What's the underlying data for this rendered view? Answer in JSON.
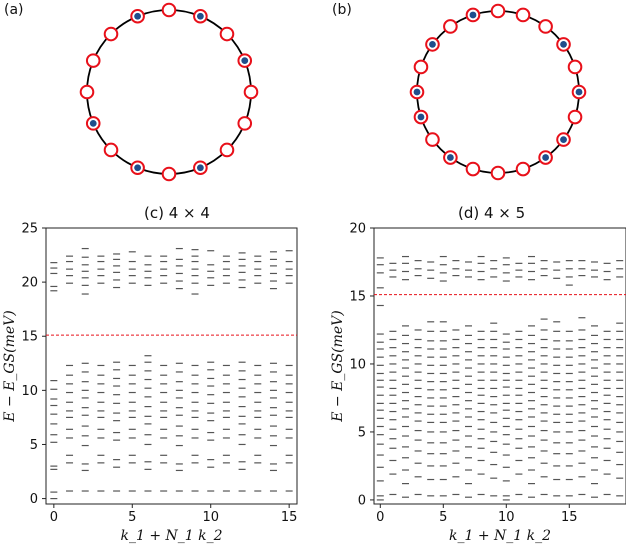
{
  "panels": [
    {
      "label": "(a)",
      "sites": 16,
      "filled": [
        false,
        true,
        false,
        true,
        false,
        false,
        false,
        true,
        false,
        true,
        false,
        true,
        false,
        false,
        false,
        true
      ]
    },
    {
      "label": "(b)",
      "sites": 20,
      "filled": [
        false,
        false,
        true,
        false,
        true,
        true,
        false,
        true,
        false,
        true,
        false,
        false,
        false,
        true,
        false,
        true,
        false,
        true,
        true,
        false
      ]
    }
  ],
  "colors": {
    "ring": "#000000",
    "site_edge": "#e8101a",
    "site_fill": "#ffffff",
    "occupied": "#1f4e8c",
    "level": "#555555",
    "cut": "#e8101a"
  },
  "chart_data": [
    {
      "type": "scatter",
      "title": "(c)  4 × 4",
      "xlabel": "k_1 + N_1 k_2",
      "ylabel": "E − E_GS(meV)",
      "xlim": [
        -0.5,
        15.5
      ],
      "ylim": [
        -0.5,
        25
      ],
      "xticks": [
        0,
        5,
        10,
        15
      ],
      "yticks": [
        0,
        5,
        10,
        15,
        20,
        25
      ],
      "cut_line": 15.1,
      "levels": [
        {
          "x": 0,
          "y": [
            0.0,
            0.6,
            2.7,
            3.0,
            5.2,
            5.9,
            6.9,
            7.8,
            8.6,
            9.2,
            10.1,
            10.9,
            19.2,
            19.6,
            20.8,
            21.3,
            21.8
          ]
        },
        {
          "x": 1,
          "y": [
            0.7,
            3.3,
            4.0,
            5.6,
            6.4,
            7.5,
            8.1,
            8.9,
            9.8,
            10.6,
            11.4,
            12.3,
            19.9,
            20.6,
            21.2,
            21.9,
            22.4
          ]
        },
        {
          "x": 2,
          "y": [
            0.7,
            2.6,
            3.2,
            4.9,
            5.8,
            6.7,
            7.7,
            8.4,
            9.3,
            10.0,
            10.8,
            11.7,
            12.5,
            18.9,
            19.7,
            20.4,
            21.0,
            21.6,
            22.3,
            23.1
          ]
        },
        {
          "x": 3,
          "y": [
            0.7,
            3.3,
            4.0,
            5.6,
            6.4,
            7.5,
            8.1,
            8.9,
            9.8,
            10.6,
            11.4,
            12.3,
            19.9,
            20.6,
            21.2,
            21.9,
            22.4
          ]
        },
        {
          "x": 4,
          "y": [
            0.7,
            2.9,
            3.6,
            5.4,
            6.1,
            7.2,
            7.9,
            8.8,
            9.6,
            10.4,
            11.1,
            11.9,
            12.6,
            19.5,
            20.2,
            20.9,
            21.5,
            22.1,
            22.6
          ]
        },
        {
          "x": 5,
          "y": [
            0.7,
            3.3,
            4.0,
            5.6,
            6.4,
            7.5,
            8.1,
            8.9,
            9.8,
            10.6,
            11.4,
            12.3,
            19.9,
            20.6,
            21.2,
            21.9,
            22.8
          ]
        },
        {
          "x": 6,
          "y": [
            0.7,
            2.7,
            3.4,
            5.0,
            5.9,
            6.9,
            7.6,
            8.5,
            9.4,
            10.2,
            11.0,
            11.8,
            12.6,
            13.2,
            19.7,
            20.4,
            21.0,
            21.6,
            22.4
          ]
        },
        {
          "x": 7,
          "y": [
            0.7,
            3.3,
            4.0,
            5.6,
            6.4,
            7.5,
            8.1,
            8.9,
            9.8,
            10.6,
            11.4,
            12.3,
            19.9,
            20.6,
            21.2,
            21.9,
            22.4
          ]
        },
        {
          "x": 8,
          "y": [
            0.7,
            2.6,
            3.2,
            4.9,
            5.8,
            6.7,
            7.7,
            8.4,
            9.3,
            10.0,
            10.8,
            11.7,
            12.5,
            19.4,
            20.1,
            20.8,
            21.5,
            22.1,
            23.1
          ]
        },
        {
          "x": 9,
          "y": [
            0.7,
            3.3,
            4.0,
            5.6,
            6.4,
            7.5,
            8.1,
            8.9,
            9.8,
            10.6,
            11.4,
            12.3,
            18.9,
            19.9,
            20.6,
            21.2,
            21.9,
            22.4,
            23.0
          ]
        },
        {
          "x": 10,
          "y": [
            0.7,
            2.9,
            3.6,
            5.4,
            6.1,
            7.2,
            7.9,
            8.8,
            9.6,
            10.4,
            11.1,
            11.9,
            12.6,
            19.7,
            20.4,
            21.0,
            21.6,
            22.9
          ]
        },
        {
          "x": 11,
          "y": [
            0.7,
            3.3,
            4.0,
            5.6,
            6.4,
            7.5,
            8.1,
            8.9,
            9.8,
            10.6,
            11.4,
            12.3,
            19.9,
            20.6,
            21.2,
            21.9,
            22.4
          ]
        },
        {
          "x": 12,
          "y": [
            0.7,
            2.7,
            3.4,
            5.0,
            5.9,
            6.9,
            7.6,
            8.5,
            9.4,
            10.2,
            11.0,
            11.8,
            12.6,
            19.5,
            20.2,
            20.9,
            21.5,
            22.1,
            22.7
          ]
        },
        {
          "x": 13,
          "y": [
            0.7,
            3.3,
            4.0,
            5.6,
            6.4,
            7.5,
            8.1,
            8.9,
            9.8,
            10.6,
            11.4,
            12.3,
            19.9,
            20.6,
            21.2,
            21.9,
            22.4
          ]
        },
        {
          "x": 14,
          "y": [
            0.7,
            2.6,
            3.2,
            4.9,
            5.8,
            6.7,
            7.7,
            8.4,
            9.3,
            10.0,
            10.8,
            11.7,
            12.5,
            19.4,
            20.1,
            20.8,
            21.5,
            22.1,
            22.8
          ]
        },
        {
          "x": 15,
          "y": [
            0.7,
            3.3,
            4.0,
            5.6,
            6.4,
            7.5,
            8.1,
            8.9,
            9.8,
            10.6,
            11.4,
            12.3,
            19.9,
            20.6,
            21.2,
            21.9,
            22.9
          ]
        }
      ]
    },
    {
      "type": "scatter",
      "title": "(d)  4 × 5",
      "xlabel": "k_1 + N_1 k_2",
      "ylabel": "E − E_GS(meV)",
      "xlim": [
        -0.5,
        19.5
      ],
      "ylim": [
        -0.3,
        20
      ],
      "xticks": [
        0,
        5,
        10,
        15
      ],
      "yticks": [
        0,
        5,
        10,
        15,
        20
      ],
      "cut_line": 15.1,
      "levels": [
        {
          "x": 0,
          "y": [
            0.0,
            0.3,
            1.4,
            2.4,
            3.3,
            4.1,
            4.8,
            5.4,
            6.0,
            6.6,
            7.1,
            7.7,
            8.3,
            8.8,
            9.3,
            9.9,
            10.5,
            11.1,
            11.6,
            12.2,
            14.3,
            15.6,
            16.7,
            17.3,
            17.8
          ]
        },
        {
          "x": 1,
          "y": [
            0.4,
            1.9,
            2.9,
            3.8,
            4.5,
            5.2,
            5.9,
            6.5,
            7.1,
            7.7,
            8.2,
            8.8,
            9.4,
            10.0,
            10.6,
            11.2,
            11.8,
            12.4,
            16.4,
            16.9,
            17.4
          ]
        },
        {
          "x": 2,
          "y": [
            0.2,
            1.2,
            2.2,
            3.1,
            3.9,
            4.7,
            5.4,
            6.1,
            6.7,
            7.3,
            7.9,
            8.5,
            9.1,
            9.7,
            10.3,
            10.9,
            11.5,
            12.1,
            12.8,
            16.2,
            16.8,
            17.4,
            17.9
          ]
        },
        {
          "x": 3,
          "y": [
            0.4,
            1.7,
            2.7,
            3.6,
            4.4,
            5.1,
            5.8,
            6.4,
            7.0,
            7.6,
            8.2,
            8.8,
            9.4,
            10.0,
            10.6,
            11.2,
            11.8,
            12.5,
            16.5,
            17.0,
            17.6
          ]
        },
        {
          "x": 4,
          "y": [
            0.3,
            1.5,
            2.5,
            3.4,
            4.2,
            5.0,
            5.7,
            6.3,
            6.9,
            7.5,
            8.1,
            8.7,
            9.3,
            9.9,
            10.5,
            11.1,
            11.7,
            12.4,
            13.1,
            16.3,
            16.9,
            17.5
          ]
        },
        {
          "x": 5,
          "y": [
            0.3,
            1.5,
            2.5,
            3.4,
            4.2,
            5.0,
            5.7,
            6.3,
            6.9,
            7.5,
            8.1,
            8.7,
            9.3,
            9.9,
            10.5,
            11.1,
            11.7,
            12.4,
            13.1,
            16.1,
            16.7,
            17.3,
            17.9
          ]
        },
        {
          "x": 6,
          "y": [
            0.4,
            1.7,
            2.7,
            3.6,
            4.4,
            5.1,
            5.8,
            6.4,
            7.0,
            7.6,
            8.2,
            8.8,
            9.4,
            10.0,
            10.6,
            11.2,
            11.8,
            12.5,
            16.5,
            17.0,
            17.6
          ]
        },
        {
          "x": 7,
          "y": [
            0.2,
            1.2,
            2.2,
            3.1,
            3.9,
            4.7,
            5.4,
            6.1,
            6.7,
            7.3,
            7.9,
            8.5,
            9.1,
            9.7,
            10.3,
            10.9,
            11.5,
            12.1,
            12.8,
            16.4,
            16.9,
            17.5
          ]
        },
        {
          "x": 8,
          "y": [
            0.4,
            1.9,
            2.9,
            3.8,
            4.5,
            5.2,
            5.9,
            6.5,
            7.1,
            7.7,
            8.2,
            8.8,
            9.4,
            10.0,
            10.6,
            11.2,
            11.8,
            12.4,
            16.2,
            16.8,
            17.4,
            17.9
          ]
        },
        {
          "x": 9,
          "y": [
            0.3,
            1.6,
            2.6,
            3.5,
            4.3,
            5.0,
            5.7,
            6.4,
            7.0,
            7.6,
            8.2,
            8.8,
            9.4,
            10.0,
            10.6,
            11.2,
            11.8,
            12.4,
            13.0,
            16.4,
            17.0,
            17.6
          ]
        },
        {
          "x": 10,
          "y": [
            0.0,
            0.3,
            1.4,
            2.4,
            3.3,
            4.1,
            4.8,
            5.4,
            6.0,
            6.6,
            7.1,
            7.7,
            8.3,
            8.8,
            9.3,
            9.9,
            10.5,
            11.1,
            11.6,
            12.2,
            16.1,
            16.7,
            17.3,
            17.8
          ]
        },
        {
          "x": 11,
          "y": [
            0.4,
            1.9,
            2.9,
            3.8,
            4.5,
            5.2,
            5.9,
            6.5,
            7.1,
            7.7,
            8.2,
            8.8,
            9.4,
            10.0,
            10.6,
            11.2,
            11.8,
            12.4,
            16.4,
            16.9,
            17.4
          ]
        },
        {
          "x": 12,
          "y": [
            0.2,
            1.2,
            2.2,
            3.1,
            3.9,
            4.7,
            5.4,
            6.1,
            6.7,
            7.3,
            7.9,
            8.5,
            9.1,
            9.7,
            10.3,
            10.9,
            11.5,
            12.1,
            12.8,
            16.2,
            16.8,
            17.4,
            17.9
          ]
        },
        {
          "x": 13,
          "y": [
            0.4,
            1.7,
            2.7,
            3.6,
            4.4,
            5.1,
            5.8,
            6.4,
            7.0,
            7.6,
            8.2,
            8.8,
            9.4,
            10.0,
            10.6,
            11.2,
            11.8,
            12.5,
            13.3,
            16.5,
            17.0,
            17.6
          ]
        },
        {
          "x": 14,
          "y": [
            0.3,
            1.5,
            2.5,
            3.4,
            4.2,
            5.0,
            5.7,
            6.3,
            6.9,
            7.5,
            8.1,
            8.7,
            9.3,
            9.9,
            10.5,
            11.1,
            11.7,
            12.4,
            13.1,
            16.3,
            16.9,
            17.5
          ]
        },
        {
          "x": 15,
          "y": [
            0.3,
            1.5,
            2.5,
            3.4,
            4.2,
            5.0,
            5.7,
            6.3,
            6.9,
            7.5,
            8.1,
            8.7,
            9.3,
            9.9,
            10.5,
            11.1,
            11.7,
            12.4,
            15.8,
            16.4,
            17.0,
            17.6
          ]
        },
        {
          "x": 16,
          "y": [
            0.4,
            1.7,
            2.7,
            3.6,
            4.4,
            5.1,
            5.8,
            6.4,
            7.0,
            7.6,
            8.2,
            8.8,
            9.4,
            10.0,
            10.6,
            11.2,
            11.8,
            12.5,
            13.4,
            16.5,
            17.0,
            17.6
          ]
        },
        {
          "x": 17,
          "y": [
            0.2,
            1.2,
            2.2,
            3.1,
            3.9,
            4.7,
            5.4,
            6.1,
            6.7,
            7.3,
            7.9,
            8.5,
            9.1,
            9.7,
            10.3,
            10.9,
            11.5,
            12.1,
            12.8,
            16.4,
            16.9,
            17.5
          ]
        },
        {
          "x": 18,
          "y": [
            0.4,
            1.9,
            2.9,
            3.8,
            4.5,
            5.2,
            5.9,
            6.5,
            7.1,
            7.7,
            8.2,
            8.8,
            9.4,
            10.0,
            10.6,
            11.2,
            11.8,
            12.4,
            16.2,
            16.8,
            17.4
          ]
        },
        {
          "x": 19,
          "y": [
            0.3,
            1.6,
            2.6,
            3.5,
            4.3,
            5.0,
            5.7,
            6.4,
            7.0,
            7.6,
            8.2,
            8.8,
            9.4,
            10.0,
            10.6,
            11.2,
            11.8,
            12.4,
            13.0,
            16.4,
            17.0,
            17.6
          ]
        }
      ]
    }
  ]
}
